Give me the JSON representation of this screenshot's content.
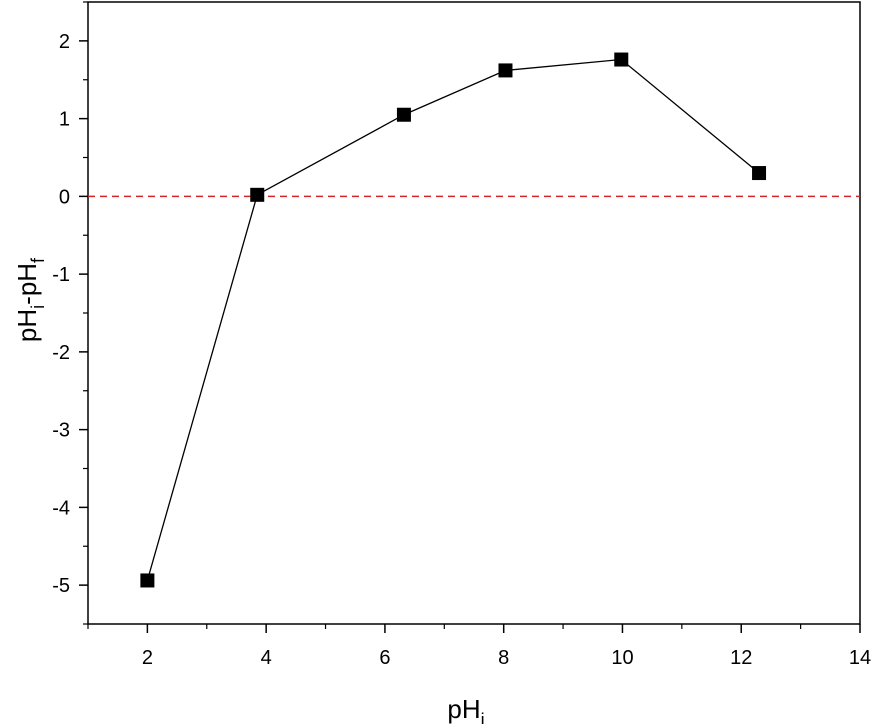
{
  "chart_data": {
    "type": "line",
    "xlabel": {
      "main": "pH",
      "sub": "i"
    },
    "ylabel": {
      "main1": "pH",
      "sub1": "i",
      "sep": "-pH",
      "sub2": "f"
    },
    "xlim": [
      1,
      14
    ],
    "ylim": [
      -5.5,
      2.5
    ],
    "xticks": [
      2,
      4,
      6,
      8,
      10,
      12,
      14
    ],
    "yticks": [
      -5,
      -4,
      -3,
      -2,
      -1,
      0,
      1,
      2
    ],
    "xtick_labels": [
      "2",
      "4",
      "6",
      "8",
      "10",
      "12",
      "14"
    ],
    "ytick_labels": [
      "-5",
      "-4",
      "-3",
      "-2",
      "-1",
      "0",
      "1",
      "2"
    ],
    "grid": false,
    "reference_line": {
      "y": 0,
      "color": "#d62728",
      "style": "dashed"
    },
    "series": [
      {
        "marker": "square",
        "color": "#000000",
        "x": [
          2.0,
          3.85,
          6.32,
          8.03,
          9.98,
          12.3
        ],
        "y": [
          -4.94,
          0.02,
          1.05,
          1.62,
          1.76,
          0.3
        ]
      }
    ]
  }
}
